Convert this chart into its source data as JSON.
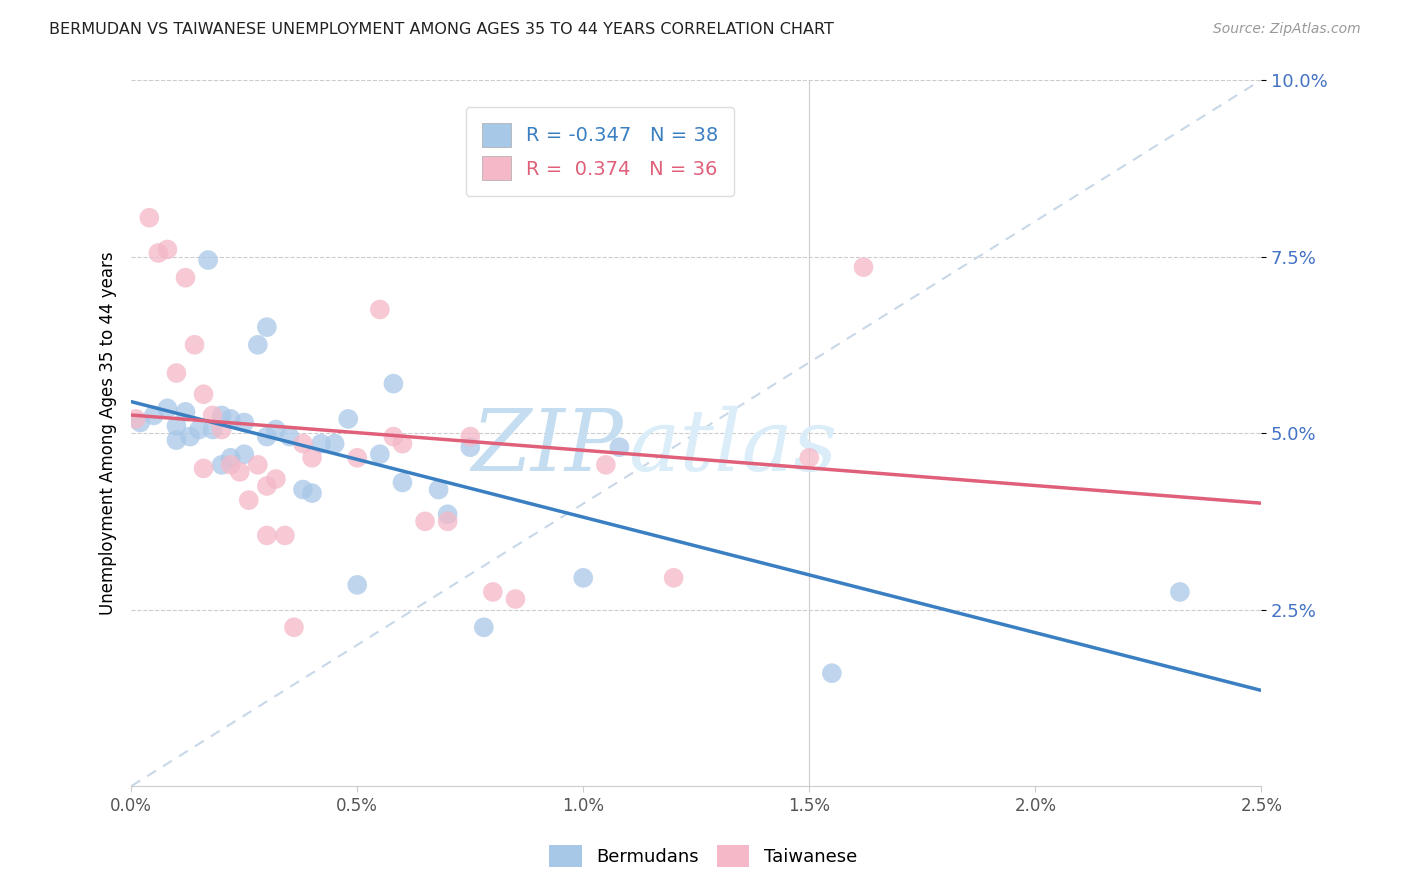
{
  "title": "BERMUDAN VS TAIWANESE UNEMPLOYMENT AMONG AGES 35 TO 44 YEARS CORRELATION CHART",
  "source": "Source: ZipAtlas.com",
  "ylabel": "Unemployment Among Ages 35 to 44 years",
  "legend_bermudans": "Bermudans",
  "legend_taiwanese": "Taiwanese",
  "bermudans_R": "-0.347",
  "bermudans_N": "38",
  "taiwanese_R": "0.374",
  "taiwanese_N": "36",
  "blue_dot_color": "#a8c8e8",
  "pink_dot_color": "#f4b8c8",
  "blue_line_color": "#3a7fc1",
  "pink_line_color": "#e0607a",
  "dash_line_color": "#c8d8e8",
  "xmin": 0.0,
  "xmax": 2.5,
  "ymin": 0.0,
  "ymax": 10.0,
  "yticks": [
    2.5,
    5.0,
    7.5,
    10.0
  ],
  "xticks": [
    0.0,
    0.5,
    1.0,
    1.5,
    2.0,
    2.5
  ],
  "bermudans_x": [
    0.02,
    0.05,
    0.08,
    0.1,
    0.1,
    0.12,
    0.13,
    0.15,
    0.17,
    0.18,
    0.2,
    0.2,
    0.22,
    0.22,
    0.25,
    0.25,
    0.28,
    0.3,
    0.3,
    0.32,
    0.35,
    0.38,
    0.4,
    0.42,
    0.45,
    0.48,
    0.5,
    0.55,
    0.58,
    0.6,
    0.68,
    0.7,
    0.75,
    0.78,
    1.0,
    1.08,
    1.55,
    2.32
  ],
  "bermudans_y": [
    5.15,
    5.25,
    5.35,
    5.1,
    4.9,
    5.3,
    4.95,
    5.05,
    7.45,
    5.05,
    5.25,
    4.55,
    4.65,
    5.2,
    4.7,
    5.15,
    6.25,
    4.95,
    6.5,
    5.05,
    4.95,
    4.2,
    4.15,
    4.85,
    4.85,
    5.2,
    2.85,
    4.7,
    5.7,
    4.3,
    4.2,
    3.85,
    4.8,
    2.25,
    2.95,
    4.8,
    1.6,
    2.75
  ],
  "taiwanese_x": [
    0.01,
    0.04,
    0.06,
    0.08,
    0.1,
    0.12,
    0.14,
    0.16,
    0.16,
    0.18,
    0.2,
    0.22,
    0.24,
    0.26,
    0.28,
    0.3,
    0.3,
    0.32,
    0.34,
    0.36,
    0.38,
    0.4,
    0.5,
    0.55,
    0.58,
    0.6,
    0.65,
    0.7,
    0.75,
    0.8,
    0.85,
    1.0,
    1.05,
    1.2,
    1.5,
    1.62
  ],
  "taiwanese_y": [
    5.2,
    8.05,
    7.55,
    7.6,
    5.85,
    7.2,
    6.25,
    5.55,
    4.5,
    5.25,
    5.05,
    4.55,
    4.45,
    4.05,
    4.55,
    4.25,
    3.55,
    4.35,
    3.55,
    2.25,
    4.85,
    4.65,
    4.65,
    6.75,
    4.95,
    4.85,
    3.75,
    3.75,
    4.95,
    2.75,
    2.65,
    9.05,
    4.55,
    2.95,
    4.65,
    7.35
  ]
}
